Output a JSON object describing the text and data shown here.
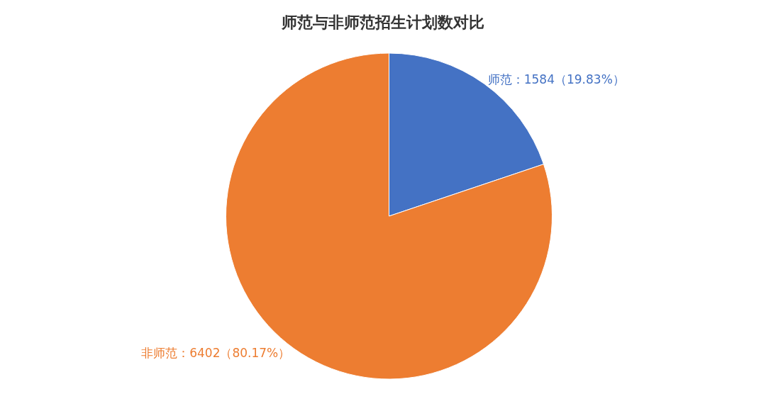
{
  "chart_data": {
    "type": "pie",
    "title": "师范与非师范招生计划数对比",
    "categories": [
      "师范",
      "非师范"
    ],
    "values": [
      1584,
      6402
    ],
    "colors": [
      "#4472c4",
      "#ed7d31"
    ],
    "value_labels": [
      "1584（19.83%）",
      "6402（80.17%）"
    ],
    "legend": false
  }
}
